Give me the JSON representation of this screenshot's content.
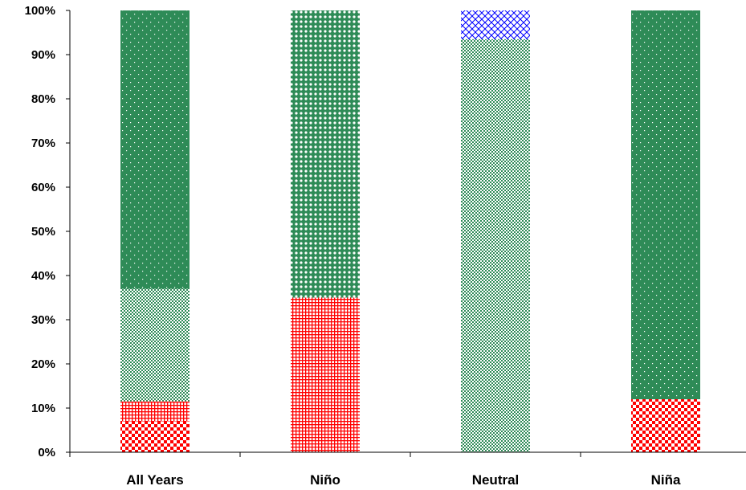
{
  "chart_data": {
    "type": "bar",
    "stacked": true,
    "categories": [
      "All Years",
      "Niño",
      "Neutral",
      "Niña"
    ],
    "series": [
      {
        "pattern": "red-checker",
        "color": "#ff0000",
        "values": [
          7,
          0,
          0,
          12
        ]
      },
      {
        "pattern": "red-grid",
        "color": "#ff0000",
        "values": [
          4.5,
          35,
          0,
          0
        ]
      },
      {
        "pattern": "green-fine-check",
        "color": "#2e8b57",
        "values": [
          25.5,
          0,
          93.5,
          0
        ]
      },
      {
        "pattern": "green-circles",
        "color": "#2e8b57",
        "values": [
          0,
          65,
          0,
          0
        ]
      },
      {
        "pattern": "green-dots",
        "color": "#2e8b57",
        "values": [
          63,
          0,
          0,
          88
        ]
      },
      {
        "pattern": "blue-crosshatch",
        "color": "#0000ff",
        "values": [
          0,
          0,
          6.5,
          0
        ]
      }
    ],
    "ylim": [
      0,
      100
    ],
    "yticks": [
      "0%",
      "10%",
      "20%",
      "30%",
      "40%",
      "50%",
      "60%",
      "70%",
      "80%",
      "90%",
      "100%"
    ],
    "grid": false,
    "legend": "none"
  }
}
